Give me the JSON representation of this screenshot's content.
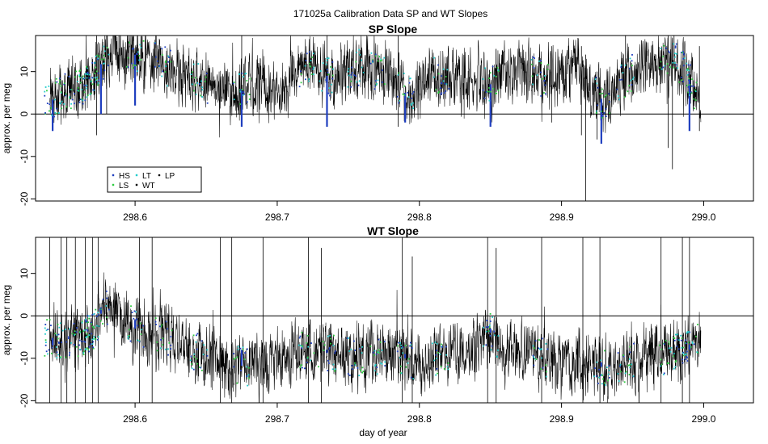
{
  "figure": {
    "title": "171025a   Calibration Data SP and WT Slopes"
  },
  "chart_data": [
    {
      "type": "line",
      "title": "SP Slope",
      "xlabel": "",
      "ylabel": "approx. per meg",
      "xlim": [
        298.53,
        299.035
      ],
      "ylim": [
        -20.5,
        18.5
      ],
      "x_ticks": [
        "298.6",
        "298.7",
        "298.8",
        "298.9",
        "299.0"
      ],
      "y_ticks": [
        "-20",
        "-10",
        "0",
        "10"
      ],
      "reference_line_y": 0,
      "x_start": 298.54,
      "x_end": 298.998,
      "baseline_trend": [
        [
          298.54,
          3
        ],
        [
          298.55,
          5
        ],
        [
          298.56,
          6
        ],
        [
          298.57,
          8
        ],
        [
          298.578,
          13
        ],
        [
          298.59,
          15
        ],
        [
          298.61,
          13
        ],
        [
          298.63,
          10
        ],
        [
          298.65,
          7
        ],
        [
          298.67,
          5
        ],
        [
          298.68,
          6
        ],
        [
          298.69,
          8
        ],
        [
          298.7,
          4
        ],
        [
          298.71,
          7
        ],
        [
          298.72,
          12
        ],
        [
          298.73,
          10
        ],
        [
          298.74,
          8
        ],
        [
          298.75,
          10
        ],
        [
          298.76,
          11
        ],
        [
          298.77,
          10
        ],
        [
          298.78,
          8
        ],
        [
          298.79,
          5
        ],
        [
          298.8,
          6
        ],
        [
          298.81,
          9
        ],
        [
          298.82,
          8
        ],
        [
          298.83,
          7
        ],
        [
          298.84,
          8
        ],
        [
          298.85,
          7
        ],
        [
          298.86,
          9
        ],
        [
          298.87,
          11
        ],
        [
          298.88,
          9
        ],
        [
          298.89,
          8
        ],
        [
          298.9,
          9
        ],
        [
          298.91,
          11
        ],
        [
          298.92,
          6
        ],
        [
          298.93,
          3
        ],
        [
          298.94,
          7
        ],
        [
          298.95,
          10
        ],
        [
          298.96,
          11
        ],
        [
          298.97,
          12
        ],
        [
          298.98,
          13
        ],
        [
          298.99,
          8
        ],
        [
          298.998,
          1
        ]
      ],
      "wt_spikes": [
        [
          298.573,
          -5,
          18.5
        ],
        [
          298.58,
          0,
          18.5
        ],
        [
          298.675,
          -3,
          18.5
        ],
        [
          298.735,
          5,
          18.5
        ],
        [
          298.785,
          -3,
          18.5
        ],
        [
          298.893,
          -2,
          16
        ],
        [
          298.914,
          -5,
          16
        ],
        [
          298.917,
          -20.5,
          14
        ],
        [
          298.925,
          -6,
          10
        ],
        [
          298.945,
          4,
          18.5
        ],
        [
          298.975,
          -8,
          18.5
        ],
        [
          298.978,
          -13,
          18
        ],
        [
          298.997,
          -4,
          16
        ]
      ],
      "calibration_dips": [
        [
          298.542,
          -4
        ],
        [
          298.576,
          0
        ],
        [
          298.6,
          2
        ],
        [
          298.675,
          -3
        ],
        [
          298.735,
          -3
        ],
        [
          298.79,
          -2
        ],
        [
          298.85,
          -3
        ],
        [
          298.928,
          -7
        ],
        [
          298.99,
          -4
        ]
      ],
      "legend": {
        "position": "bottom-left",
        "items": [
          {
            "label": "HS",
            "color": "#1f3fbf",
            "marker": "square"
          },
          {
            "label": "LS",
            "color": "#2ecc40",
            "marker": "square"
          },
          {
            "label": "LT",
            "color": "#22cccc",
            "marker": "square"
          },
          {
            "label": "WT",
            "color": "#000000",
            "marker": "square"
          },
          {
            "label": "LP",
            "color": "#000000",
            "marker": "circle"
          }
        ]
      },
      "series_colors": {
        "HS": "#1f3fbf",
        "LS": "#2ecc40",
        "LT": "#22cccc",
        "WT": "#000000",
        "LP": "#000000"
      }
    },
    {
      "type": "line",
      "title": "WT Slope",
      "xlabel": "day of year",
      "ylabel": "approx. per meg",
      "xlim": [
        298.53,
        299.035
      ],
      "ylim": [
        -20.5,
        18.5
      ],
      "x_ticks": [
        "298.6",
        "298.7",
        "298.8",
        "298.9",
        "299.0"
      ],
      "y_ticks": [
        "-20",
        "-10",
        "0",
        "10"
      ],
      "reference_line_y": 0,
      "x_start": 298.54,
      "x_end": 298.998,
      "baseline_trend": [
        [
          298.54,
          -5
        ],
        [
          298.55,
          -6
        ],
        [
          298.56,
          -5
        ],
        [
          298.57,
          -4
        ],
        [
          298.578,
          2
        ],
        [
          298.59,
          0
        ],
        [
          298.6,
          -3
        ],
        [
          298.62,
          -5
        ],
        [
          298.64,
          -8
        ],
        [
          298.66,
          -11
        ],
        [
          298.68,
          -12
        ],
        [
          298.7,
          -11
        ],
        [
          298.72,
          -8
        ],
        [
          298.74,
          -9
        ],
        [
          298.76,
          -10
        ],
        [
          298.78,
          -9
        ],
        [
          298.8,
          -11
        ],
        [
          298.82,
          -9
        ],
        [
          298.84,
          -8
        ],
        [
          298.85,
          -4
        ],
        [
          298.86,
          -9
        ],
        [
          298.88,
          -9
        ],
        [
          298.9,
          -11
        ],
        [
          298.92,
          -12
        ],
        [
          298.94,
          -12
        ],
        [
          298.96,
          -10
        ],
        [
          298.98,
          -9
        ],
        [
          298.998,
          -5
        ]
      ],
      "wt_spikes": [
        [
          298.54,
          -20.5,
          18.5
        ],
        [
          298.548,
          -20.5,
          18.5
        ],
        [
          298.552,
          -20.5,
          18.5
        ],
        [
          298.558,
          -20.5,
          18.5
        ],
        [
          298.565,
          -20.5,
          18.5
        ],
        [
          298.57,
          -20.5,
          18.5
        ],
        [
          298.574,
          -20.5,
          18.5
        ],
        [
          298.603,
          -20.5,
          18.5
        ],
        [
          298.612,
          -20.5,
          18.5
        ],
        [
          298.66,
          -20.5,
          18.5
        ],
        [
          298.668,
          -20.5,
          18.5
        ],
        [
          298.69,
          -20.5,
          18.5
        ],
        [
          298.722,
          -20.5,
          18.5
        ],
        [
          298.731,
          -20.5,
          16
        ],
        [
          298.788,
          -20.5,
          18.5
        ],
        [
          298.795,
          -20.5,
          14
        ],
        [
          298.848,
          -20.5,
          18.5
        ],
        [
          298.854,
          -20.5,
          16
        ],
        [
          298.886,
          -20.5,
          18.5
        ],
        [
          298.915,
          -20.5,
          18.5
        ],
        [
          298.927,
          -20.5,
          18.5
        ],
        [
          298.97,
          -20.5,
          18.5
        ],
        [
          298.985,
          -20.5,
          18.5
        ],
        [
          298.99,
          -20.5,
          18.5
        ]
      ],
      "calibration_dips": [
        [
          298.542,
          -7
        ],
        [
          298.576,
          2
        ],
        [
          298.6,
          -1
        ],
        [
          298.675,
          -8
        ],
        [
          298.735,
          -8
        ],
        [
          298.79,
          -9
        ],
        [
          298.85,
          -3
        ],
        [
          298.928,
          -11
        ],
        [
          298.99,
          -8
        ]
      ],
      "series_colors": {
        "HS": "#1f3fbf",
        "LS": "#2ecc40",
        "LT": "#22cccc",
        "WT": "#000000",
        "LP": "#000000"
      }
    }
  ]
}
